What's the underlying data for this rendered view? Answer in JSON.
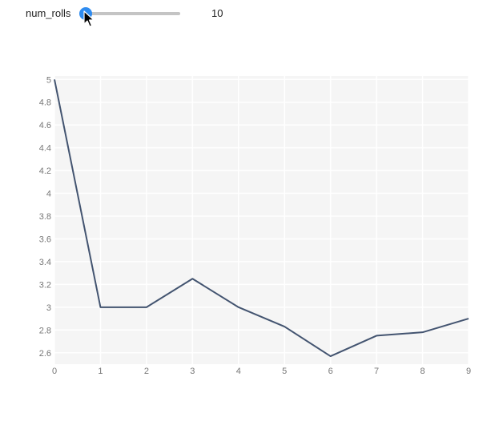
{
  "slider": {
    "label": "num_rolls",
    "value": "10",
    "fraction": 0.0,
    "accent": "#2f8cf0"
  },
  "chart_data": {
    "type": "line",
    "x": [
      0,
      1,
      2,
      3,
      4,
      5,
      6,
      7,
      8,
      9
    ],
    "series": [
      {
        "values": [
          5,
          3,
          3,
          3.25,
          3,
          2.83,
          2.57,
          2.75,
          2.78,
          2.9
        ],
        "color": "#435470"
      }
    ],
    "xlim": [
      0,
      9
    ],
    "ylim": [
      2.5,
      5.03
    ],
    "xticks": [
      "0",
      "1",
      "2",
      "3",
      "4",
      "5",
      "6",
      "7",
      "8",
      "9"
    ],
    "yticks": [
      "2.6",
      "2.8",
      "3",
      "3.2",
      "3.4",
      "3.6",
      "3.8",
      "4",
      "4.2",
      "4.4",
      "4.6",
      "4.8",
      "5"
    ],
    "grid": true,
    "background": "#f5f5f5",
    "title": "",
    "xlabel": "",
    "ylabel": ""
  }
}
